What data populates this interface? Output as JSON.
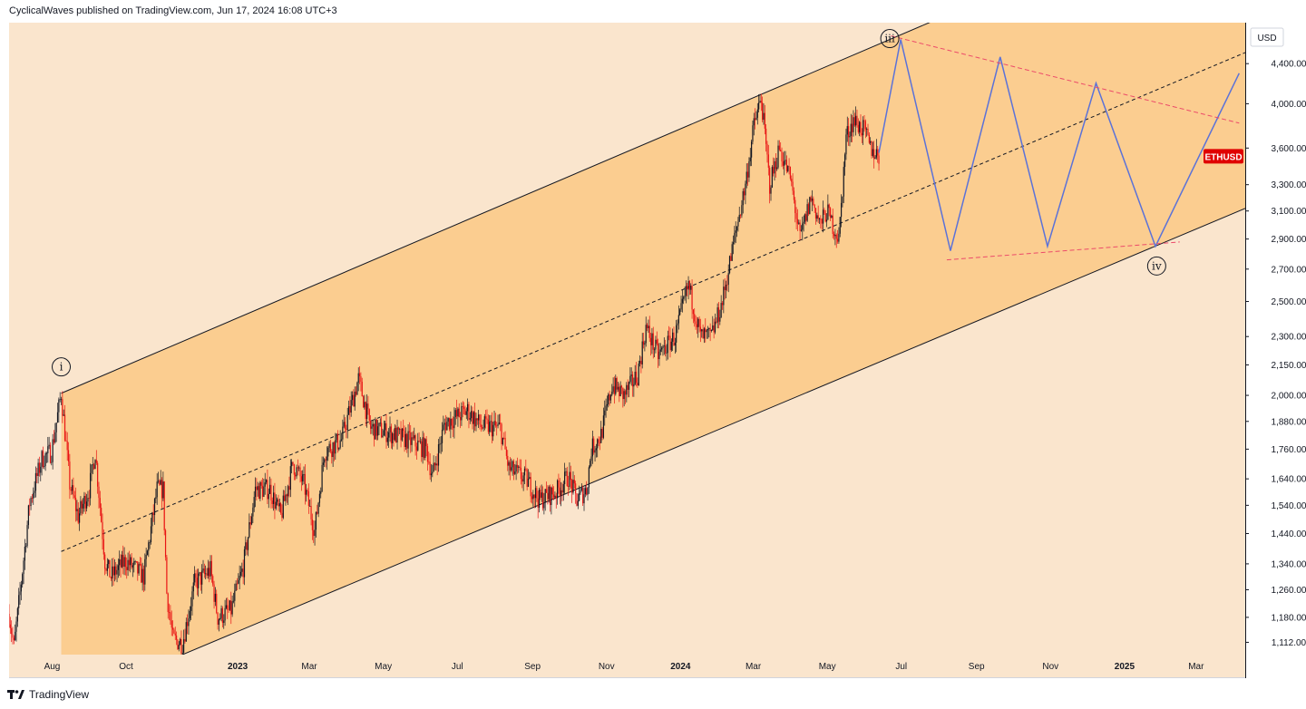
{
  "header": {
    "text": "CyclicalWaves published on TradingView.com, Jun 17, 2024 16:08 UTC+3"
  },
  "footer": {
    "brand": "TradingView",
    "logo_icon": "tradingview-logo-icon"
  },
  "colors": {
    "background": "#fae5cd",
    "channel_fill": "#fbcd90",
    "candle_up": "#131722",
    "candle_down": "#e81414",
    "projection": "#5b72d8",
    "triangle_lines": "#ec4a6a",
    "price_tag": "#e00000"
  },
  "chart_data": {
    "type": "candlestick",
    "symbol": "ETHUSD",
    "currency": "USD",
    "y_scale": "log",
    "ylim": [
      1080,
      4850
    ],
    "xlim": [
      "2022-07-01",
      "2025-04-15"
    ],
    "y_ticks": [
      1112,
      1180,
      1260,
      1340,
      1440,
      1540,
      1640,
      1760,
      1880,
      2000,
      2150,
      2300,
      2500,
      2700,
      2900,
      3100,
      3300,
      3600,
      4000,
      4400
    ],
    "y_tick_labels": [
      "1,112.00",
      "1,180.00",
      "1,260.00",
      "1,340.00",
      "1,440.00",
      "1,540.00",
      "1,640.00",
      "1,760.00",
      "1,880.00",
      "2,000.00",
      "2,150.00",
      "2,300.00",
      "2,500.00",
      "2,700.00",
      "2,900.00",
      "3,100.00",
      "3,300.00",
      "3,600.00",
      "4,000.00",
      "4,400.00"
    ],
    "x_ticks": [
      {
        "label": "Aug",
        "date": "2022-08-01",
        "bold": false
      },
      {
        "label": "Oct",
        "date": "2022-10-01",
        "bold": false
      },
      {
        "label": "2023",
        "date": "2023-01-01",
        "bold": true
      },
      {
        "label": "Mar",
        "date": "2023-03-01",
        "bold": false
      },
      {
        "label": "May",
        "date": "2023-05-01",
        "bold": false
      },
      {
        "label": "Jul",
        "date": "2023-07-01",
        "bold": false
      },
      {
        "label": "Sep",
        "date": "2023-09-01",
        "bold": false
      },
      {
        "label": "Nov",
        "date": "2023-11-01",
        "bold": false
      },
      {
        "label": "2024",
        "date": "2024-01-01",
        "bold": true
      },
      {
        "label": "Mar",
        "date": "2024-03-01",
        "bold": false
      },
      {
        "label": "May",
        "date": "2024-05-01",
        "bold": false
      },
      {
        "label": "Jul",
        "date": "2024-07-01",
        "bold": false
      },
      {
        "label": "Sep",
        "date": "2024-09-01",
        "bold": false
      },
      {
        "label": "Nov",
        "date": "2024-11-01",
        "bold": false
      },
      {
        "label": "2025",
        "date": "2025-01-01",
        "bold": true
      },
      {
        "label": "Mar",
        "date": "2025-03-01",
        "bold": false
      }
    ],
    "price_path": [
      [
        "2022-07-01",
        1190
      ],
      [
        "2022-07-05",
        1100
      ],
      [
        "2022-07-10",
        1250
      ],
      [
        "2022-07-18",
        1550
      ],
      [
        "2022-07-28",
        1720
      ],
      [
        "2022-08-05",
        1750
      ],
      [
        "2022-08-13",
        2010
      ],
      [
        "2022-08-20",
        1620
      ],
      [
        "2022-08-27",
        1500
      ],
      [
        "2022-09-05",
        1600
      ],
      [
        "2022-09-10",
        1750
      ],
      [
        "2022-09-18",
        1350
      ],
      [
        "2022-09-23",
        1300
      ],
      [
        "2022-10-05",
        1350
      ],
      [
        "2022-10-20",
        1300
      ],
      [
        "2022-10-31",
        1600
      ],
      [
        "2022-11-05",
        1600
      ],
      [
        "2022-11-08",
        1250
      ],
      [
        "2022-11-13",
        1120
      ],
      [
        "2022-11-21",
        1110
      ],
      [
        "2022-12-01",
        1280
      ],
      [
        "2022-12-14",
        1320
      ],
      [
        "2022-12-20",
        1180
      ],
      [
        "2022-12-31",
        1200
      ],
      [
        "2023-01-10",
        1330
      ],
      [
        "2023-01-20",
        1600
      ],
      [
        "2023-02-01",
        1600
      ],
      [
        "2023-02-10",
        1500
      ],
      [
        "2023-02-20",
        1700
      ],
      [
        "2023-03-01",
        1620
      ],
      [
        "2023-03-10",
        1450
      ],
      [
        "2023-03-18",
        1750
      ],
      [
        "2023-04-01",
        1800
      ],
      [
        "2023-04-15",
        2080
      ],
      [
        "2023-04-25",
        1850
      ],
      [
        "2023-05-10",
        1830
      ],
      [
        "2023-05-25",
        1800
      ],
      [
        "2023-06-10",
        1760
      ],
      [
        "2023-06-15",
        1650
      ],
      [
        "2023-06-25",
        1870
      ],
      [
        "2023-07-14",
        1930
      ],
      [
        "2023-07-25",
        1860
      ],
      [
        "2023-08-10",
        1850
      ],
      [
        "2023-08-17",
        1680
      ],
      [
        "2023-08-31",
        1640
      ],
      [
        "2023-09-11",
        1560
      ],
      [
        "2023-09-25",
        1590
      ],
      [
        "2023-10-05",
        1650
      ],
      [
        "2023-10-12",
        1560
      ],
      [
        "2023-10-20",
        1600
      ],
      [
        "2023-10-24",
        1760
      ],
      [
        "2023-11-01",
        1820
      ],
      [
        "2023-11-10",
        2050
      ],
      [
        "2023-11-20",
        2000
      ],
      [
        "2023-12-01",
        2100
      ],
      [
        "2023-12-08",
        2350
      ],
      [
        "2023-12-18",
        2200
      ],
      [
        "2024-01-01",
        2300
      ],
      [
        "2024-01-12",
        2600
      ],
      [
        "2024-01-22",
        2300
      ],
      [
        "2024-01-31",
        2300
      ],
      [
        "2024-02-09",
        2500
      ],
      [
        "2024-02-20",
        2950
      ],
      [
        "2024-02-28",
        3300
      ],
      [
        "2024-03-06",
        3800
      ],
      [
        "2024-03-12",
        4050
      ],
      [
        "2024-03-19",
        3300
      ],
      [
        "2024-03-27",
        3600
      ],
      [
        "2024-04-05",
        3350
      ],
      [
        "2024-04-13",
        2900
      ],
      [
        "2024-04-22",
        3200
      ],
      [
        "2024-04-30",
        3000
      ],
      [
        "2024-05-05",
        3100
      ],
      [
        "2024-05-15",
        2900
      ],
      [
        "2024-05-21",
        3700
      ],
      [
        "2024-05-27",
        3850
      ],
      [
        "2024-06-05",
        3750
      ],
      [
        "2024-06-10",
        3600
      ],
      [
        "2024-06-17",
        3530
      ]
    ],
    "channel": {
      "upper": [
        [
          "2022-08-13",
          2010
        ],
        [
          "2024-03-12",
          4090
        ]
      ],
      "lower": [
        [
          "2022-11-21",
          1080
        ],
        [
          "2025-04-10",
          3100
        ]
      ],
      "median": [
        [
          "2022-08-13",
          1380
        ],
        [
          "2025-04-10",
          4490
        ]
      ]
    },
    "projection_path": [
      [
        "2024-06-17",
        3560
      ],
      [
        "2024-07-05",
        4660
      ],
      [
        "2024-08-15",
        2820
      ],
      [
        "2024-09-25",
        4470
      ],
      [
        "2024-11-03",
        2850
      ],
      [
        "2024-12-13",
        4200
      ],
      [
        "2025-01-31",
        2850
      ],
      [
        "2025-04-10",
        4300
      ]
    ],
    "triangle_lines": [
      [
        [
          "2024-06-27",
          4700
        ],
        [
          "2025-04-10",
          3820
        ]
      ],
      [
        [
          "2024-08-12",
          2760
        ],
        [
          "2025-02-20",
          2880
        ]
      ]
    ],
    "wave_labels": [
      {
        "label": "i",
        "date": "2022-08-13",
        "price": 2140
      },
      {
        "label": "iii",
        "date": "2024-06-26",
        "price": 4670
      },
      {
        "label": "iv",
        "date": "2025-02-01",
        "price": 2720
      }
    ],
    "last_price_label": "ETHUSD",
    "last_price": 3530
  }
}
